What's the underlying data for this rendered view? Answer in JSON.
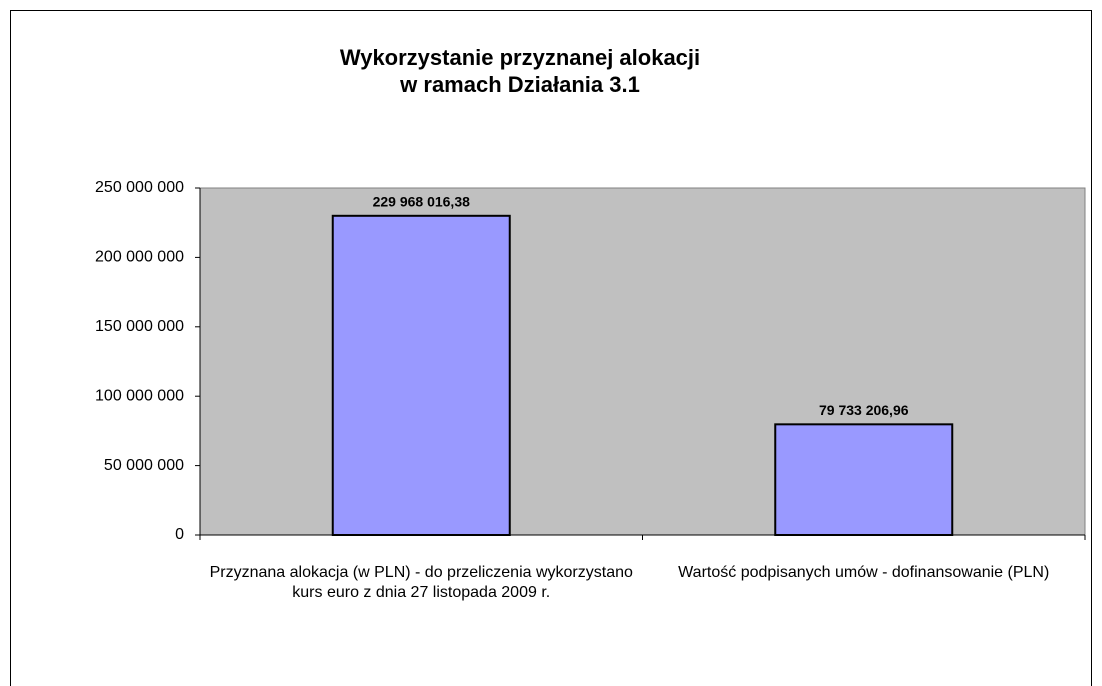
{
  "chart_data": {
    "type": "bar",
    "title": "Wykorzystanie przyznanej alokacji\nw ramach Działania 3.1",
    "categories": [
      "Przyznana alokacja (w PLN) - do przeliczenia wykorzystano kurs euro z dnia 27 listopada 2009 r.",
      "Wartość podpisanych umów - dofinansowanie (PLN)"
    ],
    "values": [
      229968016.38,
      79733206.96
    ],
    "value_labels": [
      "229 968 016,38",
      "79 733 206,96"
    ],
    "color": "#9999ff",
    "ylim": [
      0,
      250000000
    ],
    "yticks": [
      0,
      {
        "value": 50000000,
        "label": "50 000 000"
      },
      {
        "value": 100000000,
        "label": "100 000 000"
      },
      {
        "value": 150000000,
        "label": "150 000 000"
      },
      {
        "value": 200000000,
        "label": "200 000 000"
      },
      {
        "value": 250000000,
        "label": "250 000 000"
      }
    ],
    "grid": false
  }
}
